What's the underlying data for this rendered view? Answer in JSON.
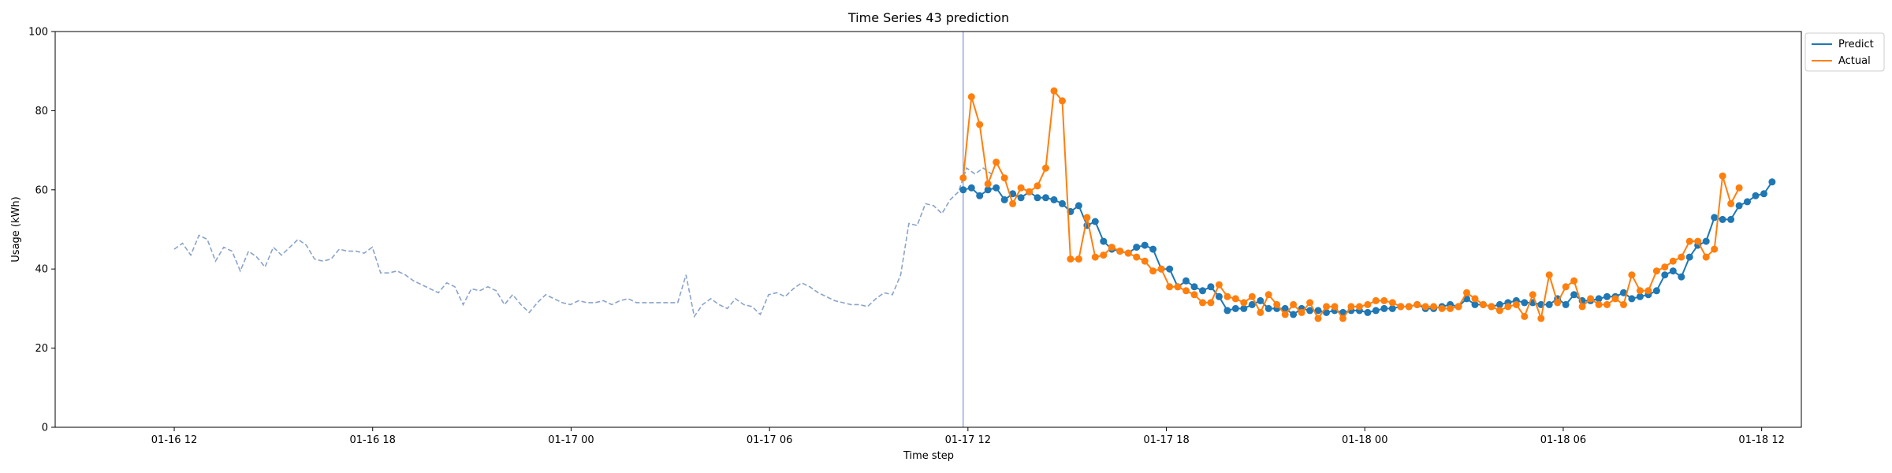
{
  "chart_data": {
    "type": "line",
    "title": "Time Series 43 prediction",
    "xlabel": "Time step",
    "ylabel": "Usage (kWh)",
    "ylim": [
      0,
      100
    ],
    "yticks": [
      0,
      20,
      40,
      60,
      80,
      100
    ],
    "xlim": [
      0,
      100
    ],
    "xticks": [
      {
        "pos": 5,
        "label": "01-16 12"
      },
      {
        "pos": 17.5,
        "label": "01-16 18"
      },
      {
        "pos": 30,
        "label": "01-17 00"
      },
      {
        "pos": 42.5,
        "label": "01-17 06"
      },
      {
        "pos": 55,
        "label": "01-17 12"
      },
      {
        "pos": 67.5,
        "label": "01-17 18"
      },
      {
        "pos": 80,
        "label": "01-18 00"
      },
      {
        "pos": 92.5,
        "label": "01-18 06"
      },
      {
        "pos": 105,
        "label": "01-18 12"
      }
    ],
    "forecast_start": 54.7,
    "history": {
      "x0": 5.0,
      "step": 0.52,
      "values": [
        45,
        46.5,
        43.5,
        48.5,
        47.5,
        42,
        45.5,
        44.5,
        39.5,
        44.5,
        43,
        40.5,
        45.5,
        43.5,
        45.5,
        47.5,
        46,
        42.5,
        42,
        42.5,
        45,
        44.5,
        44.5,
        44,
        45.5,
        39,
        39,
        39.5,
        38.5,
        37,
        36,
        35,
        34,
        36.5,
        35.5,
        31,
        35,
        34.5,
        35.5,
        34.5,
        31,
        33.5,
        31,
        29,
        31.5,
        33.5,
        32.5,
        31.5,
        31,
        32,
        31.5,
        31.5,
        32,
        31,
        32,
        32.5,
        31.5,
        31.5,
        31.5,
        31.5,
        31.5,
        31.5,
        38.5,
        28,
        31,
        32.5,
        31,
        30,
        32.5,
        31,
        30.5,
        28.5,
        33.5,
        34,
        33,
        35,
        36.5,
        35.5,
        34,
        33,
        32,
        31.5,
        31,
        31,
        30.5,
        32.5,
        34,
        33.5,
        38.5,
        51.5,
        51,
        56.5,
        56,
        54,
        57.5,
        59.5,
        65.5,
        64,
        65.5,
        64
      ]
    },
    "forecast_x0": 54.7,
    "forecast_step": 0.52,
    "series": [
      {
        "name": "Predict",
        "color": "#1f77b4",
        "values": [
          60,
          60.5,
          58.5,
          60,
          60.5,
          57.5,
          59,
          58,
          59.5,
          58,
          58,
          57.5,
          56.5,
          54.5,
          56,
          51,
          52,
          47,
          45,
          44.5,
          44,
          45.5,
          46,
          45,
          40,
          40,
          35.5,
          37,
          35.5,
          34.5,
          35.5,
          33,
          29.5,
          30,
          30,
          31,
          32,
          30,
          30,
          30,
          28.5,
          30,
          29.5,
          29.5,
          29,
          29.5,
          29,
          29.5,
          29.5,
          29,
          29.5,
          30,
          30,
          30.5,
          30.5,
          31,
          30,
          30,
          30.5,
          31,
          30.5,
          32.5,
          31,
          31,
          30.5,
          31,
          31.5,
          32,
          31.5,
          31.5,
          31,
          31,
          32.5,
          31,
          33.5,
          32,
          32,
          32.5,
          33,
          33,
          34,
          32.5,
          33,
          33.5,
          34.5,
          38.5,
          39.5,
          38,
          43,
          46,
          47,
          53,
          52.5,
          52.5,
          56,
          57,
          58.5,
          59,
          62
        ]
      },
      {
        "name": "Actual",
        "color": "#ff7f0e",
        "values": [
          63,
          83.5,
          76.5,
          61.5,
          67,
          63,
          56.5,
          60.5,
          59.5,
          61,
          65.5,
          85,
          82.5,
          42.5,
          42.5,
          53,
          43,
          43.5,
          45.5,
          44.5,
          44,
          43,
          42,
          39.5,
          40,
          35.5,
          35.5,
          34.5,
          33.5,
          31.5,
          31.5,
          36,
          33,
          32.5,
          31.5,
          33,
          29,
          33.5,
          31,
          28.5,
          31,
          29,
          31.5,
          27.5,
          30.5,
          30.5,
          27.5,
          30.5,
          30.5,
          31,
          32,
          32,
          31.5,
          30.5,
          30.5,
          31,
          30.5,
          30.5,
          30,
          30,
          30.5,
          34,
          32.5,
          31,
          30.5,
          29.5,
          30.5,
          31,
          28,
          33.5,
          27.5,
          38.5,
          31.5,
          35.5,
          37,
          30.5,
          32.5,
          31,
          31,
          32.5,
          31,
          38.5,
          34.5,
          34.5,
          39.5,
          40.5,
          42,
          43,
          47,
          47,
          43,
          45,
          63.5,
          56.5,
          60.5
        ]
      }
    ],
    "legend": "upper-right-outside"
  }
}
